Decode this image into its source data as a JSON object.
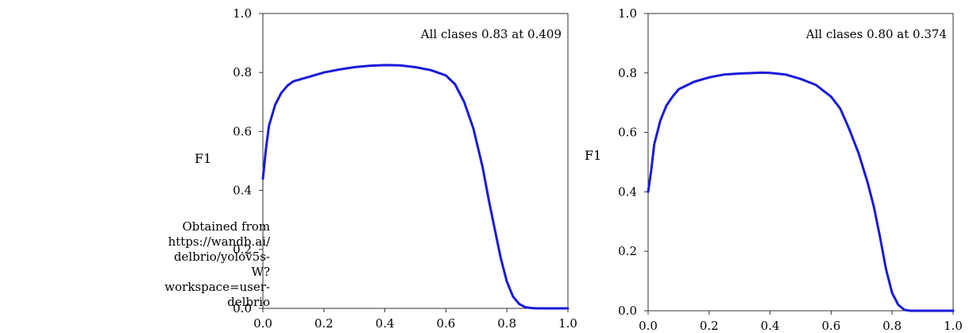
{
  "source_note": [
    "Obtained from",
    "https://wandb.ai/",
    "delbrio/yolov5s-",
    "W?workspace=user-",
    "delbrio"
  ],
  "chart_data": [
    {
      "type": "line",
      "ylabel": "F1",
      "xlim": [
        0,
        1
      ],
      "ylim": [
        0,
        1
      ],
      "xticks": [
        "0.0",
        "0.2",
        "0.4",
        "0.6",
        "0.8",
        "1.0"
      ],
      "yticks": [
        "0.0",
        "0.2",
        "0.4",
        "0.6",
        "0.8",
        "1.0"
      ],
      "annotation": "All clases 0.83 at 0.409",
      "line_color": "#1a1adb",
      "series": [
        {
          "x": [
            0.0,
            0.01,
            0.02,
            0.04,
            0.06,
            0.08,
            0.1,
            0.15,
            0.2,
            0.25,
            0.3,
            0.35,
            0.4,
            0.45,
            0.5,
            0.55,
            0.6,
            0.63,
            0.66,
            0.69,
            0.72,
            0.74,
            0.76,
            0.78,
            0.8,
            0.82,
            0.84,
            0.86,
            0.88,
            0.9,
            0.95,
            1.0
          ],
          "y": [
            0.44,
            0.54,
            0.62,
            0.69,
            0.73,
            0.755,
            0.77,
            0.785,
            0.8,
            0.81,
            0.818,
            0.823,
            0.825,
            0.824,
            0.818,
            0.808,
            0.79,
            0.76,
            0.7,
            0.61,
            0.48,
            0.37,
            0.27,
            0.17,
            0.09,
            0.04,
            0.015,
            0.004,
            0.001,
            0.0,
            0.0,
            0.0
          ]
        }
      ]
    },
    {
      "type": "line",
      "ylabel": "F1",
      "xlim": [
        0,
        1
      ],
      "ylim": [
        0,
        1
      ],
      "xticks": [
        "0.0",
        "0.2",
        "0.4",
        "0.6",
        "0.8",
        "1.0"
      ],
      "yticks": [
        "0.0",
        "0.2",
        "0.4",
        "0.6",
        "0.8",
        "1.0"
      ],
      "annotation": "All clases 0.80 at 0.374",
      "line_color": "#1a1adb",
      "series": [
        {
          "x": [
            0.0,
            0.01,
            0.02,
            0.04,
            0.06,
            0.08,
            0.1,
            0.15,
            0.2,
            0.25,
            0.3,
            0.35,
            0.374,
            0.4,
            0.45,
            0.5,
            0.55,
            0.6,
            0.63,
            0.66,
            0.69,
            0.72,
            0.74,
            0.76,
            0.78,
            0.8,
            0.82,
            0.84,
            0.86,
            0.9,
            0.95,
            1.0
          ],
          "y": [
            0.4,
            0.47,
            0.56,
            0.64,
            0.69,
            0.72,
            0.745,
            0.77,
            0.785,
            0.795,
            0.798,
            0.8,
            0.801,
            0.8,
            0.795,
            0.78,
            0.76,
            0.72,
            0.68,
            0.61,
            0.53,
            0.43,
            0.35,
            0.25,
            0.14,
            0.06,
            0.02,
            0.003,
            0.0,
            0.0,
            0.0,
            0.0
          ]
        }
      ]
    }
  ]
}
